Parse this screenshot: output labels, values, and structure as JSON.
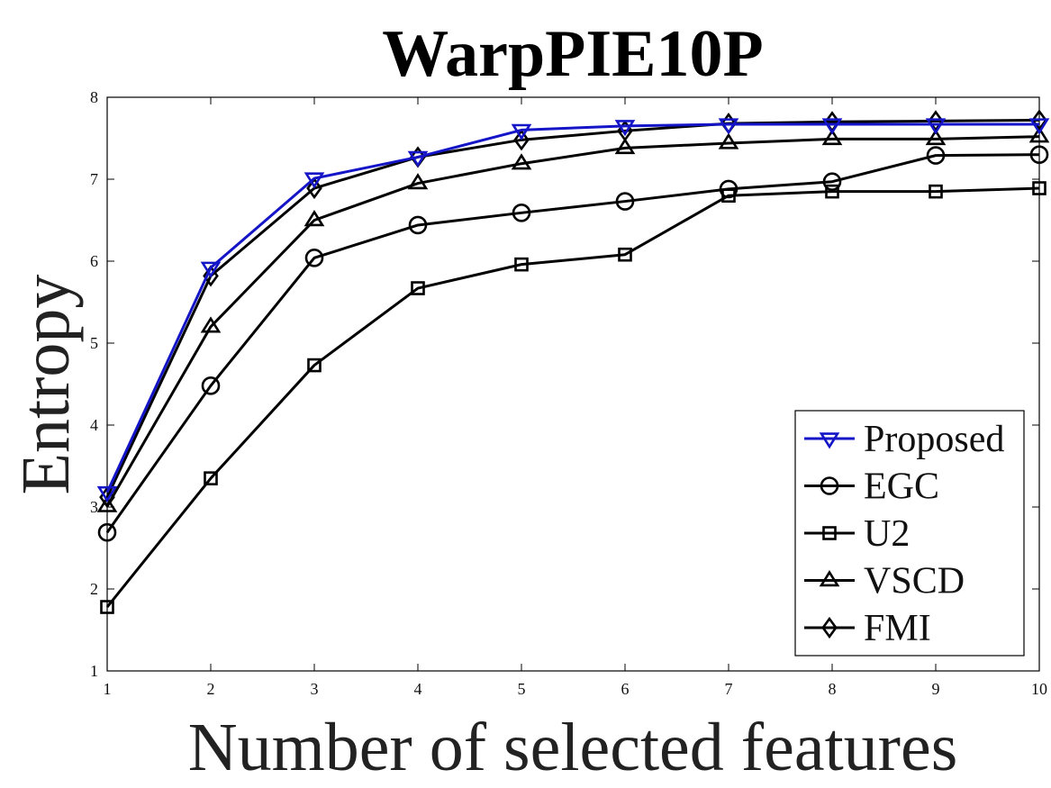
{
  "chart_data": {
    "type": "line",
    "title": "WarpPIE10P",
    "xlabel": "Number of selected features",
    "ylabel": "Entropy",
    "x": [
      1,
      2,
      3,
      4,
      5,
      6,
      7,
      8,
      9,
      10
    ],
    "xticks": [
      "1",
      "2",
      "3",
      "4",
      "5",
      "6",
      "7",
      "8",
      "9",
      "10"
    ],
    "yticks": [
      "1",
      "2",
      "3",
      "4",
      "5",
      "6",
      "7",
      "8"
    ],
    "xlim": [
      1,
      10
    ],
    "ylim": [
      1,
      8
    ],
    "grid": false,
    "legend_position": "bottom-right",
    "series": [
      {
        "name": "Proposed",
        "marker": "triangle-down",
        "color": "#1515c8",
        "values": [
          3.18,
          5.92,
          7.01,
          7.27,
          7.6,
          7.65,
          7.67,
          7.67,
          7.67,
          7.67
        ]
      },
      {
        "name": "EGC",
        "marker": "circle",
        "color": "#000000",
        "values": [
          2.69,
          4.48,
          6.04,
          6.44,
          6.59,
          6.73,
          6.88,
          6.97,
          7.29,
          7.3
        ]
      },
      {
        "name": "U2",
        "marker": "square",
        "color": "#000000",
        "values": [
          1.78,
          3.35,
          4.73,
          5.67,
          5.96,
          6.08,
          6.8,
          6.85,
          6.85,
          6.89
        ]
      },
      {
        "name": "VSCD",
        "marker": "triangle-up",
        "color": "#000000",
        "values": [
          3.01,
          5.2,
          6.5,
          6.95,
          7.19,
          7.38,
          7.44,
          7.49,
          7.49,
          7.52
        ]
      },
      {
        "name": "FMI",
        "marker": "diamond",
        "color": "#000000",
        "values": [
          3.12,
          5.82,
          6.89,
          7.27,
          7.48,
          7.59,
          7.68,
          7.7,
          7.71,
          7.72
        ]
      }
    ]
  }
}
